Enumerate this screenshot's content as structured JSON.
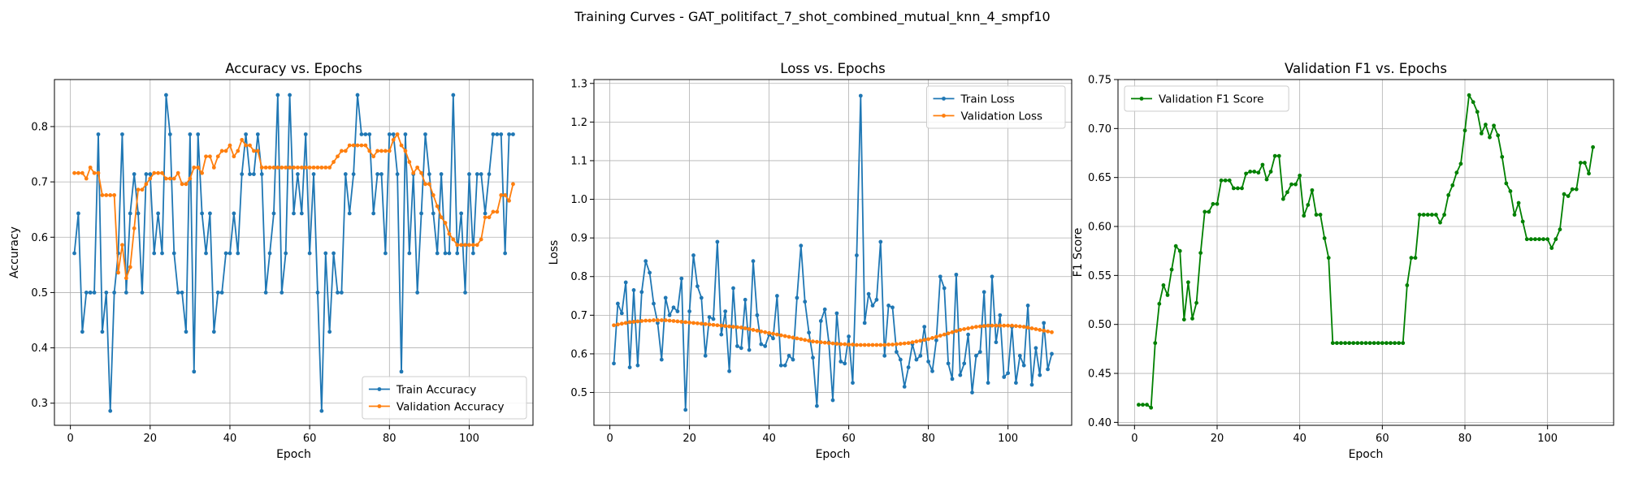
{
  "figure": {
    "suptitle": "Training Curves - GAT_politifact_7_shot_combined_mutual_knn_4_smpf10"
  },
  "colors": {
    "blue": "#1f77b4",
    "orange": "#ff7f0e",
    "green": "#008000"
  },
  "chart_data": [
    {
      "type": "line",
      "title": "Accuracy vs. Epochs",
      "xlabel": "Epoch",
      "ylabel": "Accuracy",
      "xlim": [
        -4,
        116
      ],
      "ylim": [
        0.26,
        0.885
      ],
      "xticks": [
        0,
        20,
        40,
        60,
        80,
        100
      ],
      "yticks": [
        0.3,
        0.4,
        0.5,
        0.6,
        0.7,
        0.8
      ],
      "ytick_labels": [
        "0.3",
        "0.4",
        "0.5",
        "0.6",
        "0.7",
        "0.8"
      ],
      "legend_position": "lower-right",
      "series": [
        {
          "name": "Train Accuracy",
          "color": "#1f77b4",
          "x_start": 1,
          "values": [
            0.571,
            0.643,
            0.429,
            0.5,
            0.5,
            0.5,
            0.786,
            0.429,
            0.5,
            0.286,
            0.5,
            0.571,
            0.786,
            0.5,
            0.643,
            0.714,
            0.643,
            0.5,
            0.714,
            0.714,
            0.571,
            0.643,
            0.571,
            0.857,
            0.786,
            0.571,
            0.5,
            0.5,
            0.429,
            0.786,
            0.357,
            0.786,
            0.643,
            0.571,
            0.643,
            0.429,
            0.5,
            0.5,
            0.571,
            0.571,
            0.643,
            0.571,
            0.714,
            0.786,
            0.714,
            0.714,
            0.786,
            0.714,
            0.5,
            0.571,
            0.643,
            0.857,
            0.5,
            0.571,
            0.857,
            0.643,
            0.714,
            0.643,
            0.786,
            0.571,
            0.714,
            0.5,
            0.286,
            0.571,
            0.429,
            0.571,
            0.5,
            0.5,
            0.714,
            0.643,
            0.714,
            0.857,
            0.786,
            0.786,
            0.786,
            0.643,
            0.714,
            0.714,
            0.571,
            0.786,
            0.786,
            0.714,
            0.357,
            0.786,
            0.571,
            0.714,
            0.5,
            0.643,
            0.786,
            0.714,
            0.643,
            0.571,
            0.714,
            0.571,
            0.571,
            0.857,
            0.571,
            0.643,
            0.5,
            0.714,
            0.571,
            0.714,
            0.714,
            0.643,
            0.714,
            0.786,
            0.786,
            0.786,
            0.571,
            0.786,
            0.786
          ]
        },
        {
          "name": "Validation Accuracy",
          "color": "#ff7f0e",
          "x_start": 1,
          "values": [
            0.716,
            0.716,
            0.716,
            0.706,
            0.726,
            0.716,
            0.716,
            0.676,
            0.676,
            0.676,
            0.676,
            0.536,
            0.586,
            0.526,
            0.546,
            0.616,
            0.686,
            0.686,
            0.696,
            0.706,
            0.716,
            0.716,
            0.716,
            0.706,
            0.706,
            0.706,
            0.716,
            0.696,
            0.696,
            0.706,
            0.726,
            0.726,
            0.716,
            0.746,
            0.746,
            0.726,
            0.746,
            0.756,
            0.756,
            0.766,
            0.746,
            0.756,
            0.776,
            0.766,
            0.766,
            0.756,
            0.756,
            0.726,
            0.726,
            0.726,
            0.726,
            0.726,
            0.726,
            0.726,
            0.726,
            0.726,
            0.726,
            0.726,
            0.726,
            0.726,
            0.726,
            0.726,
            0.726,
            0.726,
            0.726,
            0.736,
            0.746,
            0.756,
            0.756,
            0.766,
            0.766,
            0.766,
            0.766,
            0.766,
            0.756,
            0.746,
            0.756,
            0.756,
            0.756,
            0.756,
            0.776,
            0.786,
            0.766,
            0.756,
            0.736,
            0.716,
            0.726,
            0.716,
            0.696,
            0.696,
            0.676,
            0.656,
            0.636,
            0.626,
            0.606,
            0.596,
            0.586,
            0.586,
            0.586,
            0.586,
            0.586,
            0.586,
            0.596,
            0.636,
            0.636,
            0.646,
            0.646,
            0.676,
            0.676,
            0.666,
            0.696
          ]
        }
      ]
    },
    {
      "type": "line",
      "title": "Loss vs. Epochs",
      "xlabel": "Epoch",
      "ylabel": "Loss",
      "xlim": [
        -4,
        116
      ],
      "ylim": [
        0.415,
        1.31
      ],
      "xticks": [
        0,
        20,
        40,
        60,
        80,
        100
      ],
      "yticks": [
        0.5,
        0.6,
        0.7,
        0.8,
        0.9,
        1.0,
        1.1,
        1.2,
        1.3
      ],
      "ytick_labels": [
        "0.5",
        "0.6",
        "0.7",
        "0.8",
        "0.9",
        "1.0",
        "1.1",
        "1.2",
        "1.3"
      ],
      "legend_position": "upper-right",
      "series": [
        {
          "name": "Train Loss",
          "color": "#1f77b4",
          "x_start": 1,
          "values": [
            0.575,
            0.73,
            0.705,
            0.785,
            0.565,
            0.765,
            0.57,
            0.76,
            0.84,
            0.81,
            0.73,
            0.68,
            0.585,
            0.745,
            0.7,
            0.72,
            0.71,
            0.795,
            0.455,
            0.71,
            0.855,
            0.775,
            0.745,
            0.595,
            0.695,
            0.69,
            0.89,
            0.65,
            0.71,
            0.555,
            0.77,
            0.62,
            0.615,
            0.74,
            0.61,
            0.84,
            0.7,
            0.625,
            0.62,
            0.65,
            0.64,
            0.75,
            0.57,
            0.57,
            0.595,
            0.585,
            0.745,
            0.88,
            0.735,
            0.655,
            0.59,
            0.465,
            0.685,
            0.715,
            0.63,
            0.48,
            0.705,
            0.58,
            0.575,
            0.645,
            0.525,
            0.855,
            1.268,
            0.68,
            0.755,
            0.725,
            0.74,
            0.89,
            0.595,
            0.725,
            0.72,
            0.605,
            0.585,
            0.515,
            0.565,
            0.625,
            0.585,
            0.595,
            0.67,
            0.58,
            0.555,
            0.635,
            0.8,
            0.77,
            0.575,
            0.535,
            0.805,
            0.545,
            0.575,
            0.65,
            0.5,
            0.595,
            0.605,
            0.76,
            0.525,
            0.8,
            0.63,
            0.7,
            0.54,
            0.55,
            0.67,
            0.525,
            0.595,
            0.57,
            0.725,
            0.52,
            0.615,
            0.545,
            0.68,
            0.56,
            0.6
          ]
        },
        {
          "name": "Validation Loss",
          "color": "#ff7f0e",
          "x_start": 1,
          "values": [
            0.674,
            0.676,
            0.678,
            0.68,
            0.682,
            0.683,
            0.684,
            0.685,
            0.686,
            0.686,
            0.687,
            0.687,
            0.687,
            0.687,
            0.686,
            0.685,
            0.684,
            0.683,
            0.682,
            0.681,
            0.68,
            0.679,
            0.678,
            0.677,
            0.676,
            0.675,
            0.674,
            0.673,
            0.672,
            0.671,
            0.67,
            0.669,
            0.668,
            0.666,
            0.664,
            0.662,
            0.66,
            0.658,
            0.656,
            0.654,
            0.652,
            0.65,
            0.648,
            0.646,
            0.644,
            0.642,
            0.64,
            0.638,
            0.636,
            0.634,
            0.632,
            0.631,
            0.63,
            0.629,
            0.628,
            0.627,
            0.626,
            0.625,
            0.625,
            0.624,
            0.624,
            0.623,
            0.623,
            0.623,
            0.623,
            0.623,
            0.623,
            0.623,
            0.623,
            0.624,
            0.624,
            0.625,
            0.626,
            0.627,
            0.628,
            0.63,
            0.632,
            0.634,
            0.636,
            0.638,
            0.641,
            0.644,
            0.647,
            0.65,
            0.653,
            0.656,
            0.659,
            0.662,
            0.664,
            0.666,
            0.668,
            0.67,
            0.671,
            0.672,
            0.673,
            0.673,
            0.673,
            0.673,
            0.673,
            0.673,
            0.673,
            0.672,
            0.671,
            0.67,
            0.668,
            0.666,
            0.664,
            0.662,
            0.66,
            0.658,
            0.656
          ]
        }
      ]
    },
    {
      "type": "line",
      "title": "Validation F1 vs. Epochs",
      "xlabel": "Epoch",
      "ylabel": "F1 Score",
      "xlim": [
        -4,
        116
      ],
      "ylim": [
        0.397,
        0.75
      ],
      "xticks": [
        0,
        20,
        40,
        60,
        80,
        100
      ],
      "yticks": [
        0.4,
        0.45,
        0.5,
        0.55,
        0.6,
        0.65,
        0.7,
        0.75
      ],
      "ytick_labels": [
        "0.40",
        "0.45",
        "0.50",
        "0.55",
        "0.60",
        "0.65",
        "0.70",
        "0.75"
      ],
      "legend_position": "upper-left",
      "series": [
        {
          "name": "Validation F1 Score",
          "color": "#008000",
          "x_start": 1,
          "values": [
            0.418,
            0.418,
            0.418,
            0.415,
            0.481,
            0.521,
            0.54,
            0.53,
            0.556,
            0.58,
            0.575,
            0.505,
            0.543,
            0.506,
            0.522,
            0.573,
            0.615,
            0.615,
            0.623,
            0.623,
            0.647,
            0.647,
            0.647,
            0.639,
            0.639,
            0.639,
            0.654,
            0.656,
            0.656,
            0.655,
            0.663,
            0.648,
            0.656,
            0.672,
            0.672,
            0.628,
            0.635,
            0.643,
            0.643,
            0.652,
            0.611,
            0.622,
            0.637,
            0.612,
            0.612,
            0.588,
            0.568,
            0.481,
            0.481,
            0.481,
            0.481,
            0.481,
            0.481,
            0.481,
            0.481,
            0.481,
            0.481,
            0.481,
            0.481,
            0.481,
            0.481,
            0.481,
            0.481,
            0.481,
            0.481,
            0.54,
            0.568,
            0.568,
            0.612,
            0.612,
            0.612,
            0.612,
            0.612,
            0.604,
            0.612,
            0.632,
            0.642,
            0.655,
            0.664,
            0.698,
            0.734,
            0.727,
            0.717,
            0.695,
            0.704,
            0.691,
            0.703,
            0.693,
            0.671,
            0.644,
            0.636,
            0.612,
            0.624,
            0.605,
            0.587,
            0.587,
            0.587,
            0.587,
            0.587,
            0.587,
            0.578,
            0.587,
            0.597,
            0.633,
            0.631,
            0.638,
            0.638,
            0.665,
            0.665,
            0.654,
            0.681
          ]
        }
      ]
    }
  ]
}
